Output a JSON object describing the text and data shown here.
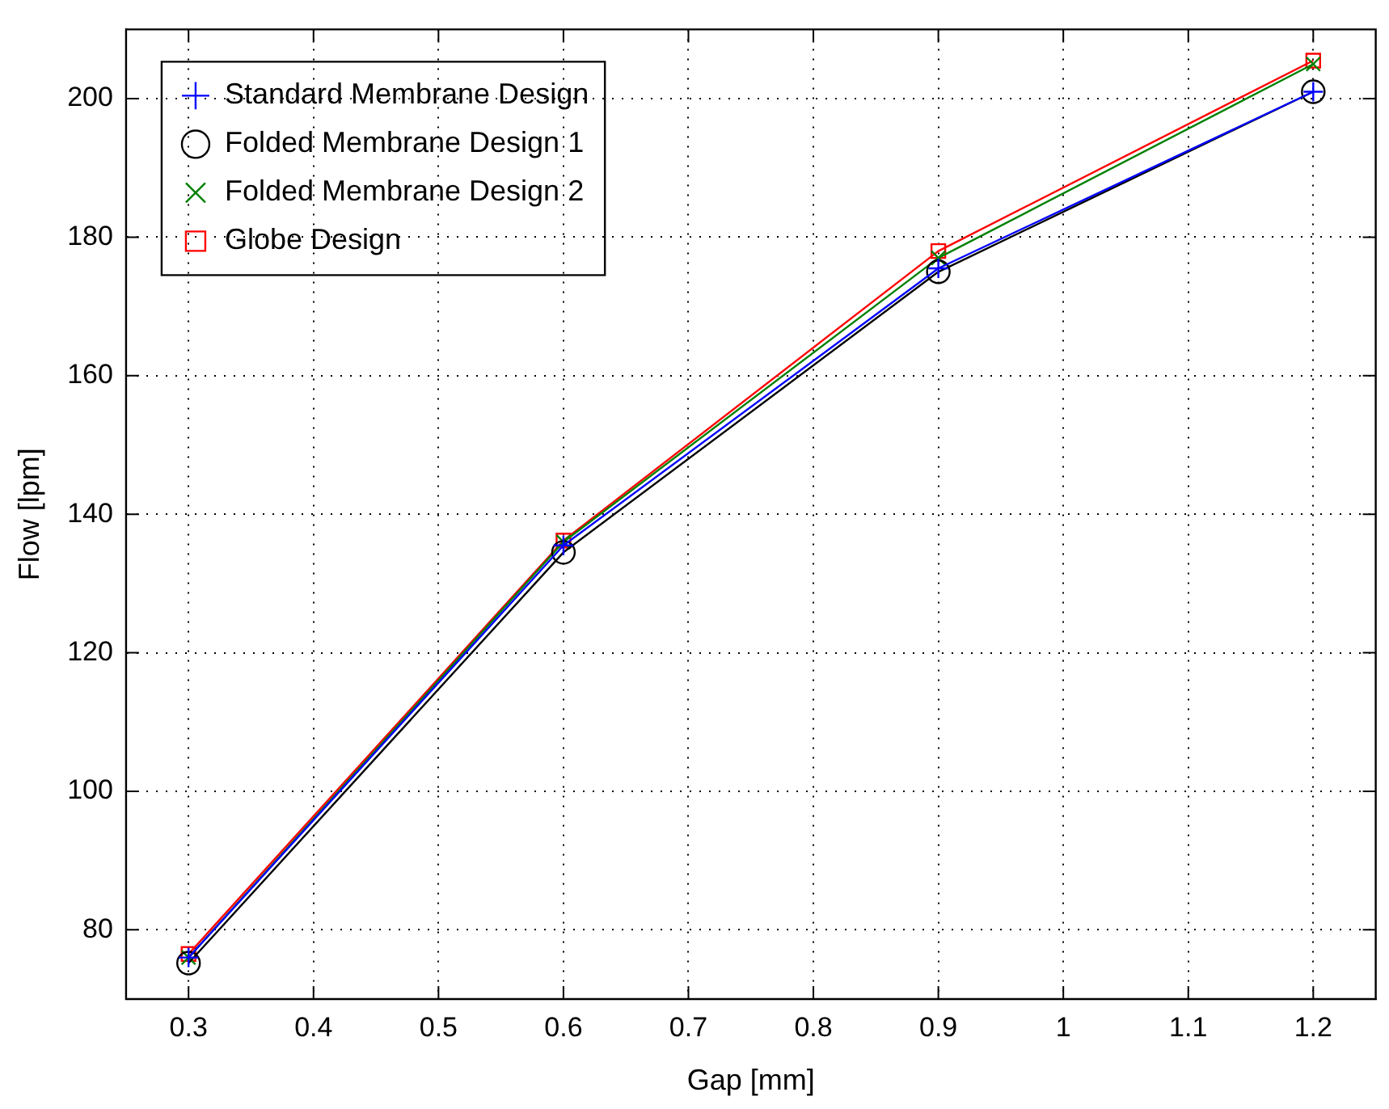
{
  "chart_data": {
    "type": "line",
    "xlabel": "Gap [mm]",
    "ylabel": "Flow [lpm]",
    "x": [
      0.3,
      0.6,
      0.9,
      1.2
    ],
    "series": [
      {
        "name": "Standard Membrane Design",
        "color": "#0000ff",
        "marker": "cross",
        "values": [
          76,
          135.5,
          175.5,
          201
        ]
      },
      {
        "name": "Folded Membrane Design 1",
        "color": "#000000",
        "marker": "circle",
        "values": [
          75.2,
          134.5,
          175,
          201
        ]
      },
      {
        "name": "Folded Membrane Design 2",
        "color": "#008000",
        "marker": "x",
        "values": [
          76,
          136,
          177,
          205
        ]
      },
      {
        "name": "Globe Design",
        "color": "#ff0000",
        "marker": "square",
        "values": [
          76.5,
          136.2,
          178,
          205.5
        ]
      }
    ],
    "xlim": [
      0.25,
      1.25
    ],
    "xticks": [
      {
        "value": 0.3,
        "label": "0.3"
      },
      {
        "value": 0.4,
        "label": "0.4"
      },
      {
        "value": 0.5,
        "label": "0.5"
      },
      {
        "value": 0.6,
        "label": "0.6"
      },
      {
        "value": 0.7,
        "label": "0.7"
      },
      {
        "value": 0.8,
        "label": "0.8"
      },
      {
        "value": 0.9,
        "label": "0.9"
      },
      1,
      {
        "value": 1.1,
        "label": "1.1"
      },
      {
        "value": 1.2,
        "label": "1.2"
      }
    ],
    "ylim": [
      70,
      210
    ],
    "yticks": [
      80,
      100,
      120,
      140,
      160,
      180,
      200
    ],
    "grid": true,
    "legend": "top left",
    "line_style": "solid"
  }
}
